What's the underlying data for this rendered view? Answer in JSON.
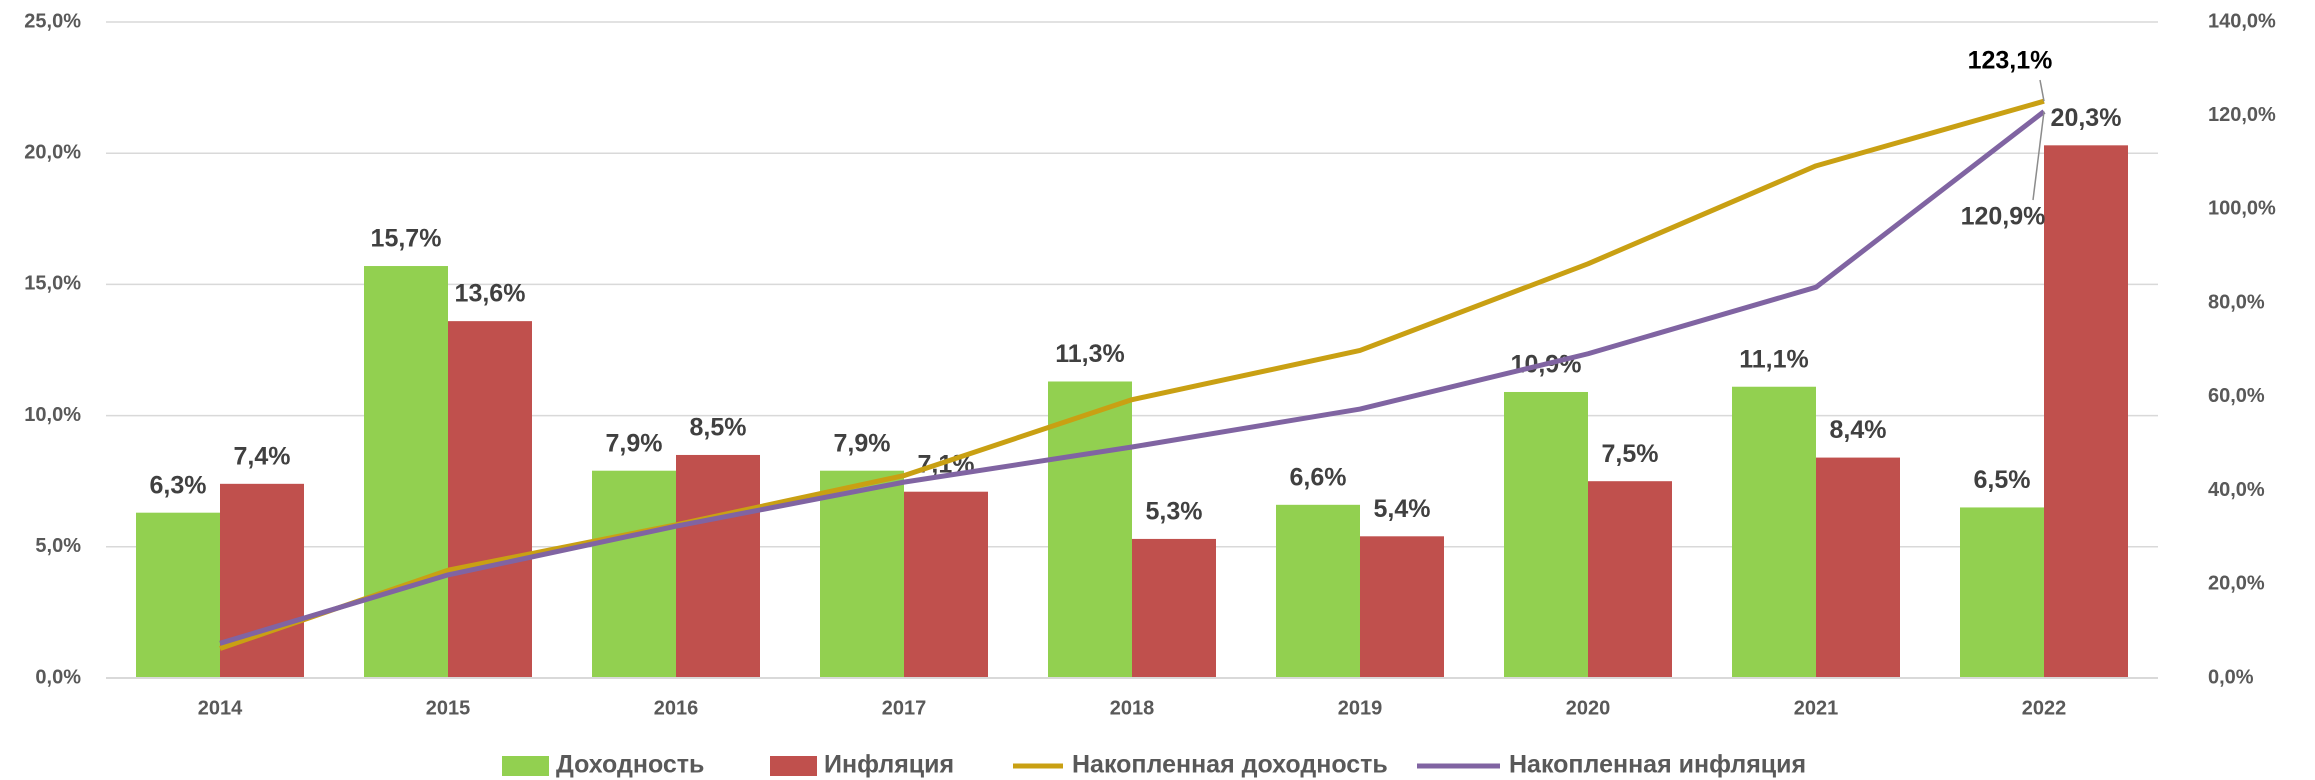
{
  "chart_data": {
    "type": "bar_line",
    "categories": [
      "2014",
      "2015",
      "2016",
      "2017",
      "2018",
      "2019",
      "2020",
      "2021",
      "2022"
    ],
    "series": [
      {
        "name": "Доходность",
        "type": "bar",
        "color": "#92d050",
        "values": [
          6.3,
          15.7,
          7.9,
          7.9,
          11.3,
          6.6,
          10.9,
          11.1,
          6.5
        ],
        "value_labels": [
          "6,3%",
          "15,7%",
          "7,9%",
          "7,9%",
          "11,3%",
          "6,6%",
          "10,9%",
          "11,1%",
          "6,5%"
        ]
      },
      {
        "name": "Инфляция",
        "type": "bar",
        "color": "#c0504d",
        "values": [
          7.4,
          13.6,
          8.5,
          7.1,
          5.3,
          5.4,
          7.5,
          8.4,
          20.3
        ],
        "value_labels": [
          "7,4%",
          "13,6%",
          "8,5%",
          "7,1%",
          "5,3%",
          "5,4%",
          "7,5%",
          "8,4%",
          "20,3%"
        ]
      },
      {
        "name": "Накопленная доходность",
        "type": "line",
        "axis": "y2",
        "color": "#c9a013",
        "values": [
          6.3,
          23.0,
          32.7,
          43.2,
          59.4,
          69.9,
          88.4,
          109.3,
          123.1
        ],
        "value_labels": [
          null,
          null,
          null,
          null,
          null,
          null,
          null,
          null,
          "123,1%"
        ]
      },
      {
        "name": "Накопленная инфляция",
        "type": "line",
        "axis": "y2",
        "color": "#8064a2",
        "values": [
          7.4,
          22.0,
          32.4,
          41.8,
          49.3,
          57.4,
          69.2,
          83.4,
          120.9
        ],
        "value_labels": [
          null,
          null,
          null,
          null,
          null,
          null,
          null,
          null,
          "120,9%"
        ]
      }
    ],
    "ylim": [
      0,
      25
    ],
    "yticks": [
      {
        "value": 0,
        "label": "0,0%"
      },
      {
        "value": 5,
        "label": "5,0%"
      },
      {
        "value": 10,
        "label": "10,0%"
      },
      {
        "value": 15,
        "label": "15,0%"
      },
      {
        "value": 20,
        "label": "20,0%"
      },
      {
        "value": 25,
        "label": "25,0%"
      }
    ],
    "y2lim": [
      0,
      140
    ],
    "y2ticks": [
      {
        "value": 0,
        "label": "0,0%"
      },
      {
        "value": 20,
        "label": "20,0%"
      },
      {
        "value": 40,
        "label": "40,0%"
      },
      {
        "value": 60,
        "label": "60,0%"
      },
      {
        "value": 80,
        "label": "80,0%"
      },
      {
        "value": 100,
        "label": "100,0%"
      },
      {
        "value": 120,
        "label": "120,0%"
      },
      {
        "value": 140,
        "label": "140,0%"
      }
    ],
    "grid": true,
    "legend": "bottom"
  }
}
